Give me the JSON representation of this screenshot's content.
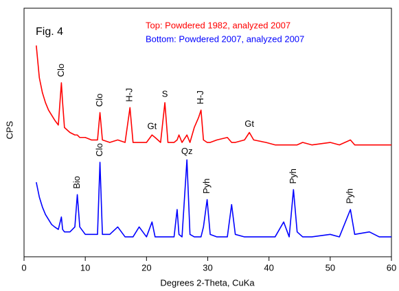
{
  "chart_data": {
    "type": "line",
    "title": "Fig. 4",
    "x_label": "Degrees 2-Theta, CuKa",
    "y_label": "CPS",
    "xlim": [
      0,
      60
    ],
    "xticks": [
      0,
      10,
      20,
      30,
      40,
      50,
      60
    ],
    "ylim": [
      0,
      100
    ],
    "x": [
      2,
      2.5,
      3,
      3.5,
      4,
      4.5,
      5,
      5.6,
      6.1,
      6.3,
      6.6,
      7.5,
      8.3,
      8.7,
      9.1,
      10,
      11,
      12,
      12.4,
      12.8,
      14,
      15.3,
      16.5,
      17.3,
      17.8,
      18.8,
      20,
      20.9,
      21.4,
      22.3,
      23,
      23.5,
      24.5,
      25,
      25.3,
      25.8,
      26.6,
      27.1,
      27.8,
      28.5,
      28.9,
      29.3,
      29.9,
      30.4,
      31.5,
      33.2,
      33.9,
      34.5,
      36,
      36.8,
      37.5,
      39.5,
      41,
      42.4,
      43.3,
      44,
      44.6,
      45.5,
      47,
      50,
      51.5,
      53.3,
      54,
      56.4,
      58,
      60
    ],
    "series": [
      {
        "name": "Top:  Powdered 1982, analyzed 2007",
        "color": "#ff0000",
        "values": [
          85,
          72,
          66,
          62,
          59,
          57,
          55,
          53,
          70,
          62,
          52,
          50,
          49,
          49,
          48,
          48,
          47,
          47,
          58,
          47,
          46,
          47,
          46,
          60,
          46,
          46,
          46,
          49,
          48,
          46,
          62,
          46,
          46,
          47,
          49,
          46,
          49,
          46,
          52,
          56,
          59,
          47,
          46,
          46,
          47,
          48,
          46,
          46,
          47,
          50,
          47,
          46,
          45,
          45,
          45,
          45,
          45,
          46,
          45,
          46,
          45,
          47,
          45,
          45,
          45,
          45
        ],
        "peak_labels": [
          {
            "text": "Clo",
            "x": 6.1,
            "vertical": true
          },
          {
            "text": "Clo",
            "x": 12.4,
            "vertical": true
          },
          {
            "text": "H-J",
            "x": 17.3,
            "vertical": true
          },
          {
            "text": "Gt",
            "x": 20.9,
            "vertical": false
          },
          {
            "text": "S",
            "x": 23,
            "vertical": false
          },
          {
            "text": "H-J",
            "x": 28.9,
            "vertical": true
          },
          {
            "text": "Gt",
            "x": 36.8,
            "vertical": false
          }
        ]
      },
      {
        "name": "Bottom: Powdered 2007, analyzed 2007",
        "color": "#0000ff",
        "values": [
          30,
          24,
          20,
          17,
          15,
          13,
          12,
          11,
          16,
          11,
          10,
          10,
          12,
          25,
          12,
          9,
          9,
          9,
          38,
          9,
          9,
          12,
          8,
          8,
          8,
          12,
          8,
          14,
          8,
          8,
          8,
          8,
          8,
          19,
          9,
          8,
          39,
          9,
          8,
          8,
          8,
          12,
          23,
          9,
          8,
          8,
          21,
          9,
          8,
          8,
          8,
          8,
          8,
          14,
          8,
          27,
          10,
          8,
          8,
          9,
          8,
          19,
          9,
          10,
          8,
          8
        ],
        "peak_labels": [
          {
            "text": "Bio",
            "x": 8.7,
            "vertical": true
          },
          {
            "text": "Clo",
            "x": 12.4,
            "vertical": true
          },
          {
            "text": "Qz",
            "x": 26.6,
            "vertical": false
          },
          {
            "text": "Pyh",
            "x": 29.9,
            "vertical": true
          },
          {
            "text": "Pyh",
            "x": 44,
            "vertical": true
          },
          {
            "text": "Pyh",
            "x": 53.3,
            "vertical": true
          }
        ]
      }
    ]
  }
}
